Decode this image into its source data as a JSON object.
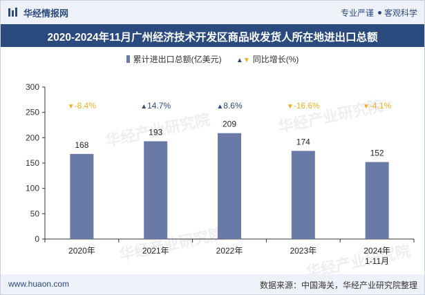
{
  "header": {
    "brand": "华经情报网",
    "tagline_left": "专业严谨",
    "tagline_right": "客观科学"
  },
  "title": "2020-2024年11月广州经济技术开发区商品收发货人所在地进出口总额",
  "legend": {
    "bar_label": "累计进出口总额(亿美元)",
    "line_label": "同比增长(%)"
  },
  "watermark": "华经产业研究院",
  "footer": {
    "site": "www.huaon.com",
    "source": "数据来源：中国海关，华经产业研究院整理"
  },
  "colors": {
    "bar": "#6a7aa6",
    "up": "#2b4a7e",
    "down": "#f2b01e",
    "header": "#2b4a7e"
  },
  "chart_data": {
    "type": "bar",
    "categories": [
      "2020年",
      "2021年",
      "2022年",
      "2023年",
      "2024年\n1-11月"
    ],
    "series": [
      {
        "name": "累计进出口总额(亿美元)",
        "values": [
          168,
          193,
          209,
          174,
          152
        ]
      },
      {
        "name": "同比增长(%)",
        "values": [
          -8.4,
          14.7,
          8.6,
          -16.6,
          -4.1
        ]
      }
    ],
    "growth_labels": [
      "-8.4%",
      "14.7%",
      "8.6%",
      "-16.6%",
      "-4.1%"
    ],
    "ylim": [
      0,
      300
    ],
    "yticks": [
      0,
      50,
      100,
      150,
      200,
      250,
      300
    ]
  }
}
